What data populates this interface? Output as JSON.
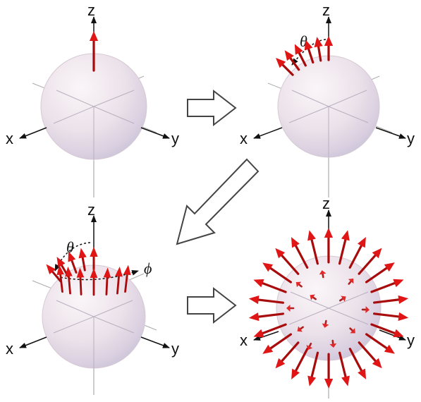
{
  "panels": [
    {
      "id": "p1",
      "axes": {
        "z": "z",
        "x": "x",
        "y": "y"
      },
      "angle_labels": []
    },
    {
      "id": "p2",
      "axes": {
        "z": "z",
        "x": "x",
        "y": "y"
      },
      "angle_labels": [
        "θ"
      ]
    },
    {
      "id": "p3",
      "axes": {
        "z": "z",
        "x": "x",
        "y": "y"
      },
      "angle_labels": [
        "θ",
        "ϕ"
      ]
    },
    {
      "id": "p4",
      "axes": {
        "z": "z",
        "x": "x",
        "y": "y"
      },
      "angle_labels": []
    }
  ],
  "colors": {
    "sphere_edge": "#c9b7c2",
    "sphere_light": "#f7f1f4",
    "sphere_mid": "#e9dde6",
    "sphere_shadow": "#c8c1d6",
    "arrow": "#e01515",
    "arrow_dark": "#a80b0b",
    "axis": "#888888",
    "process_arrow_stroke": "#444444"
  },
  "process_arrows": [
    {
      "id": "arrow-p1-to-p2",
      "direction": "right"
    },
    {
      "id": "arrow-p2-to-p3",
      "direction": "down-left"
    },
    {
      "id": "arrow-p3-to-p4",
      "direction": "right"
    }
  ]
}
